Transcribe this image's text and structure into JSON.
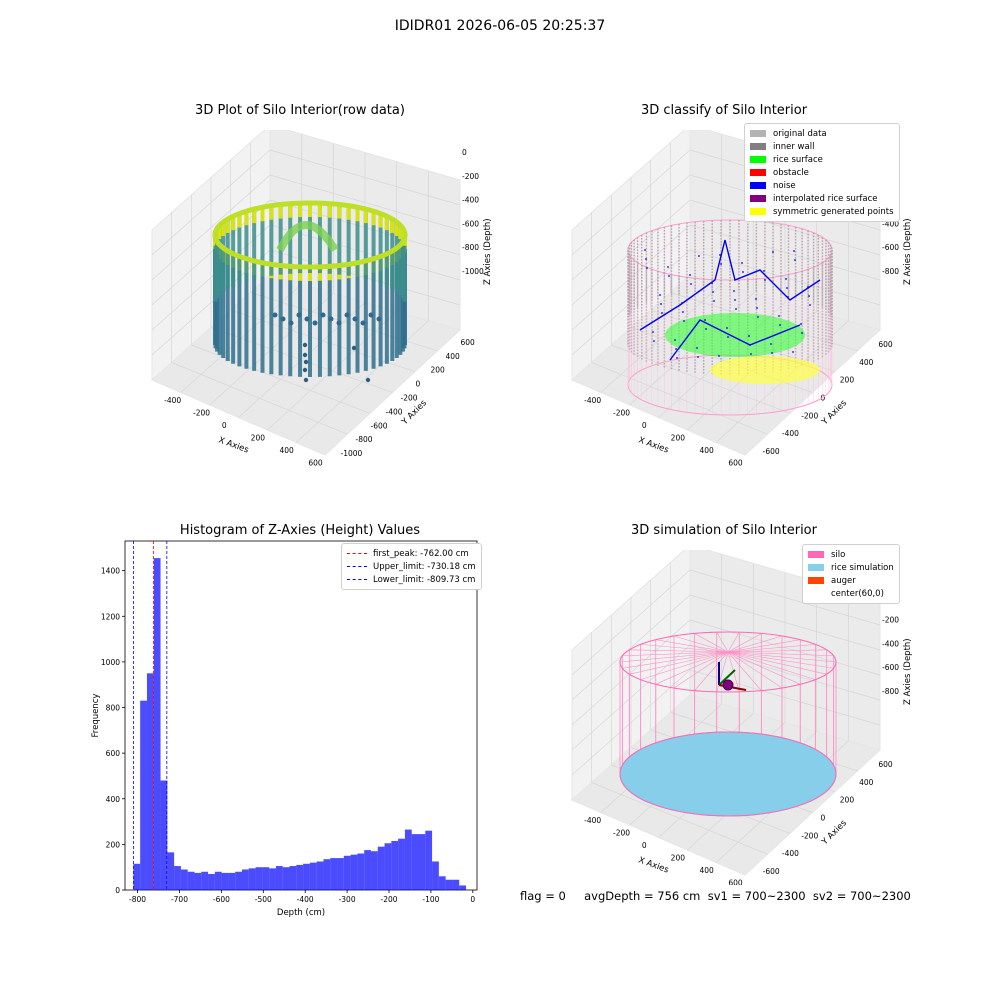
{
  "suptitle": "IDIDR01 2026-06-05 20:25:37",
  "panels": {
    "raw": {
      "title": "3D Plot of Silo Interior(row data)",
      "xlabel": "X Axies",
      "ylabel": "Y Axies",
      "zlabel": "Z Axies (Depth)",
      "xticks": [
        "-400",
        "-200",
        "0",
        "200",
        "400",
        "600"
      ],
      "yticks": [
        "600",
        "400",
        "200",
        "0",
        "-200",
        "-400",
        "-600",
        "-800",
        "-1000"
      ],
      "zticks": [
        "0",
        "-200",
        "-400",
        "-600",
        "-800",
        "-1000"
      ]
    },
    "classify": {
      "title": "3D classify of Silo Interior",
      "xlabel": "X Axies",
      "ylabel": "Y Axies",
      "zlabel": "Z Axies (Depth)",
      "xticks": [
        "-400",
        "-200",
        "0",
        "200",
        "400",
        "600"
      ],
      "yticks": [
        "600",
        "400",
        "200",
        "0",
        "-200",
        "-400",
        "-600"
      ],
      "zticks": [
        "200",
        "0",
        "-200",
        "-400",
        "-600",
        "-800"
      ],
      "legend": [
        {
          "label": "original data",
          "color": "#b3b3b3"
        },
        {
          "label": "inner wall",
          "color": "#808080"
        },
        {
          "label": "rice surface",
          "color": "#00ff00"
        },
        {
          "label": "obstacle",
          "color": "#ff0000"
        },
        {
          "label": "noise",
          "color": "#0000ff"
        },
        {
          "label": "interpolated rice surface",
          "color": "#800080"
        },
        {
          "label": "symmetric generated points",
          "color": "#ffff00"
        }
      ]
    },
    "simulation": {
      "title": "3D simulation of Silo Interior",
      "xlabel": "X Axies",
      "ylabel": "Y Axies",
      "zlabel": "Z Axies (Depth)",
      "xticks": [
        "-400",
        "-200",
        "0",
        "200",
        "400",
        "600"
      ],
      "yticks": [
        "600",
        "400",
        "200",
        "0",
        "-200",
        "-400",
        "-600"
      ],
      "zticks": [
        "200",
        "0",
        "-200",
        "-400",
        "-600",
        "-800"
      ],
      "legend": [
        {
          "label": "silo",
          "color": "#ff69b4"
        },
        {
          "label": "rice simulation",
          "color": "#87ceeb"
        },
        {
          "label": "auger",
          "color": "#ff4500"
        },
        {
          "label": "center(60,0)",
          "color": ""
        }
      ]
    }
  },
  "chart_data": [
    {
      "type": "bar",
      "title": "Histogram of Z-Axies (Height) Values",
      "xlabel": "Depth (cm)",
      "ylabel": "Frequency",
      "xlim": [
        -830,
        10
      ],
      "ylim": [
        0,
        1530
      ],
      "xticks": [
        -800,
        -700,
        -600,
        -500,
        -400,
        -300,
        -200,
        -100,
        0
      ],
      "yticks": [
        0,
        200,
        400,
        600,
        800,
        1000,
        1200,
        1400
      ],
      "bin_start": -810,
      "bin_width": 16.2,
      "color": "#0000ff",
      "values": [
        115,
        830,
        950,
        1455,
        480,
        165,
        105,
        90,
        80,
        75,
        80,
        70,
        80,
        75,
        75,
        80,
        90,
        95,
        100,
        100,
        95,
        105,
        100,
        105,
        110,
        115,
        120,
        125,
        135,
        140,
        140,
        150,
        155,
        160,
        175,
        170,
        190,
        205,
        215,
        225,
        265,
        245,
        245,
        260,
        125,
        60,
        45,
        45,
        20
      ],
      "lines": [
        {
          "label": "first_peak: -762.00 cm",
          "x": -762.0,
          "color": "#ff0000"
        },
        {
          "label": "Upper_limit: -730.18 cm",
          "x": -730.18,
          "color": "#0000ff"
        },
        {
          "label": "Lower_limit: -809.73 cm",
          "x": -809.73,
          "color": "#0000ff"
        }
      ]
    }
  ],
  "status_text": "flag = 0     avgDepth = 756 cm  sv1 = 700~2300  sv2 = 700~2300"
}
